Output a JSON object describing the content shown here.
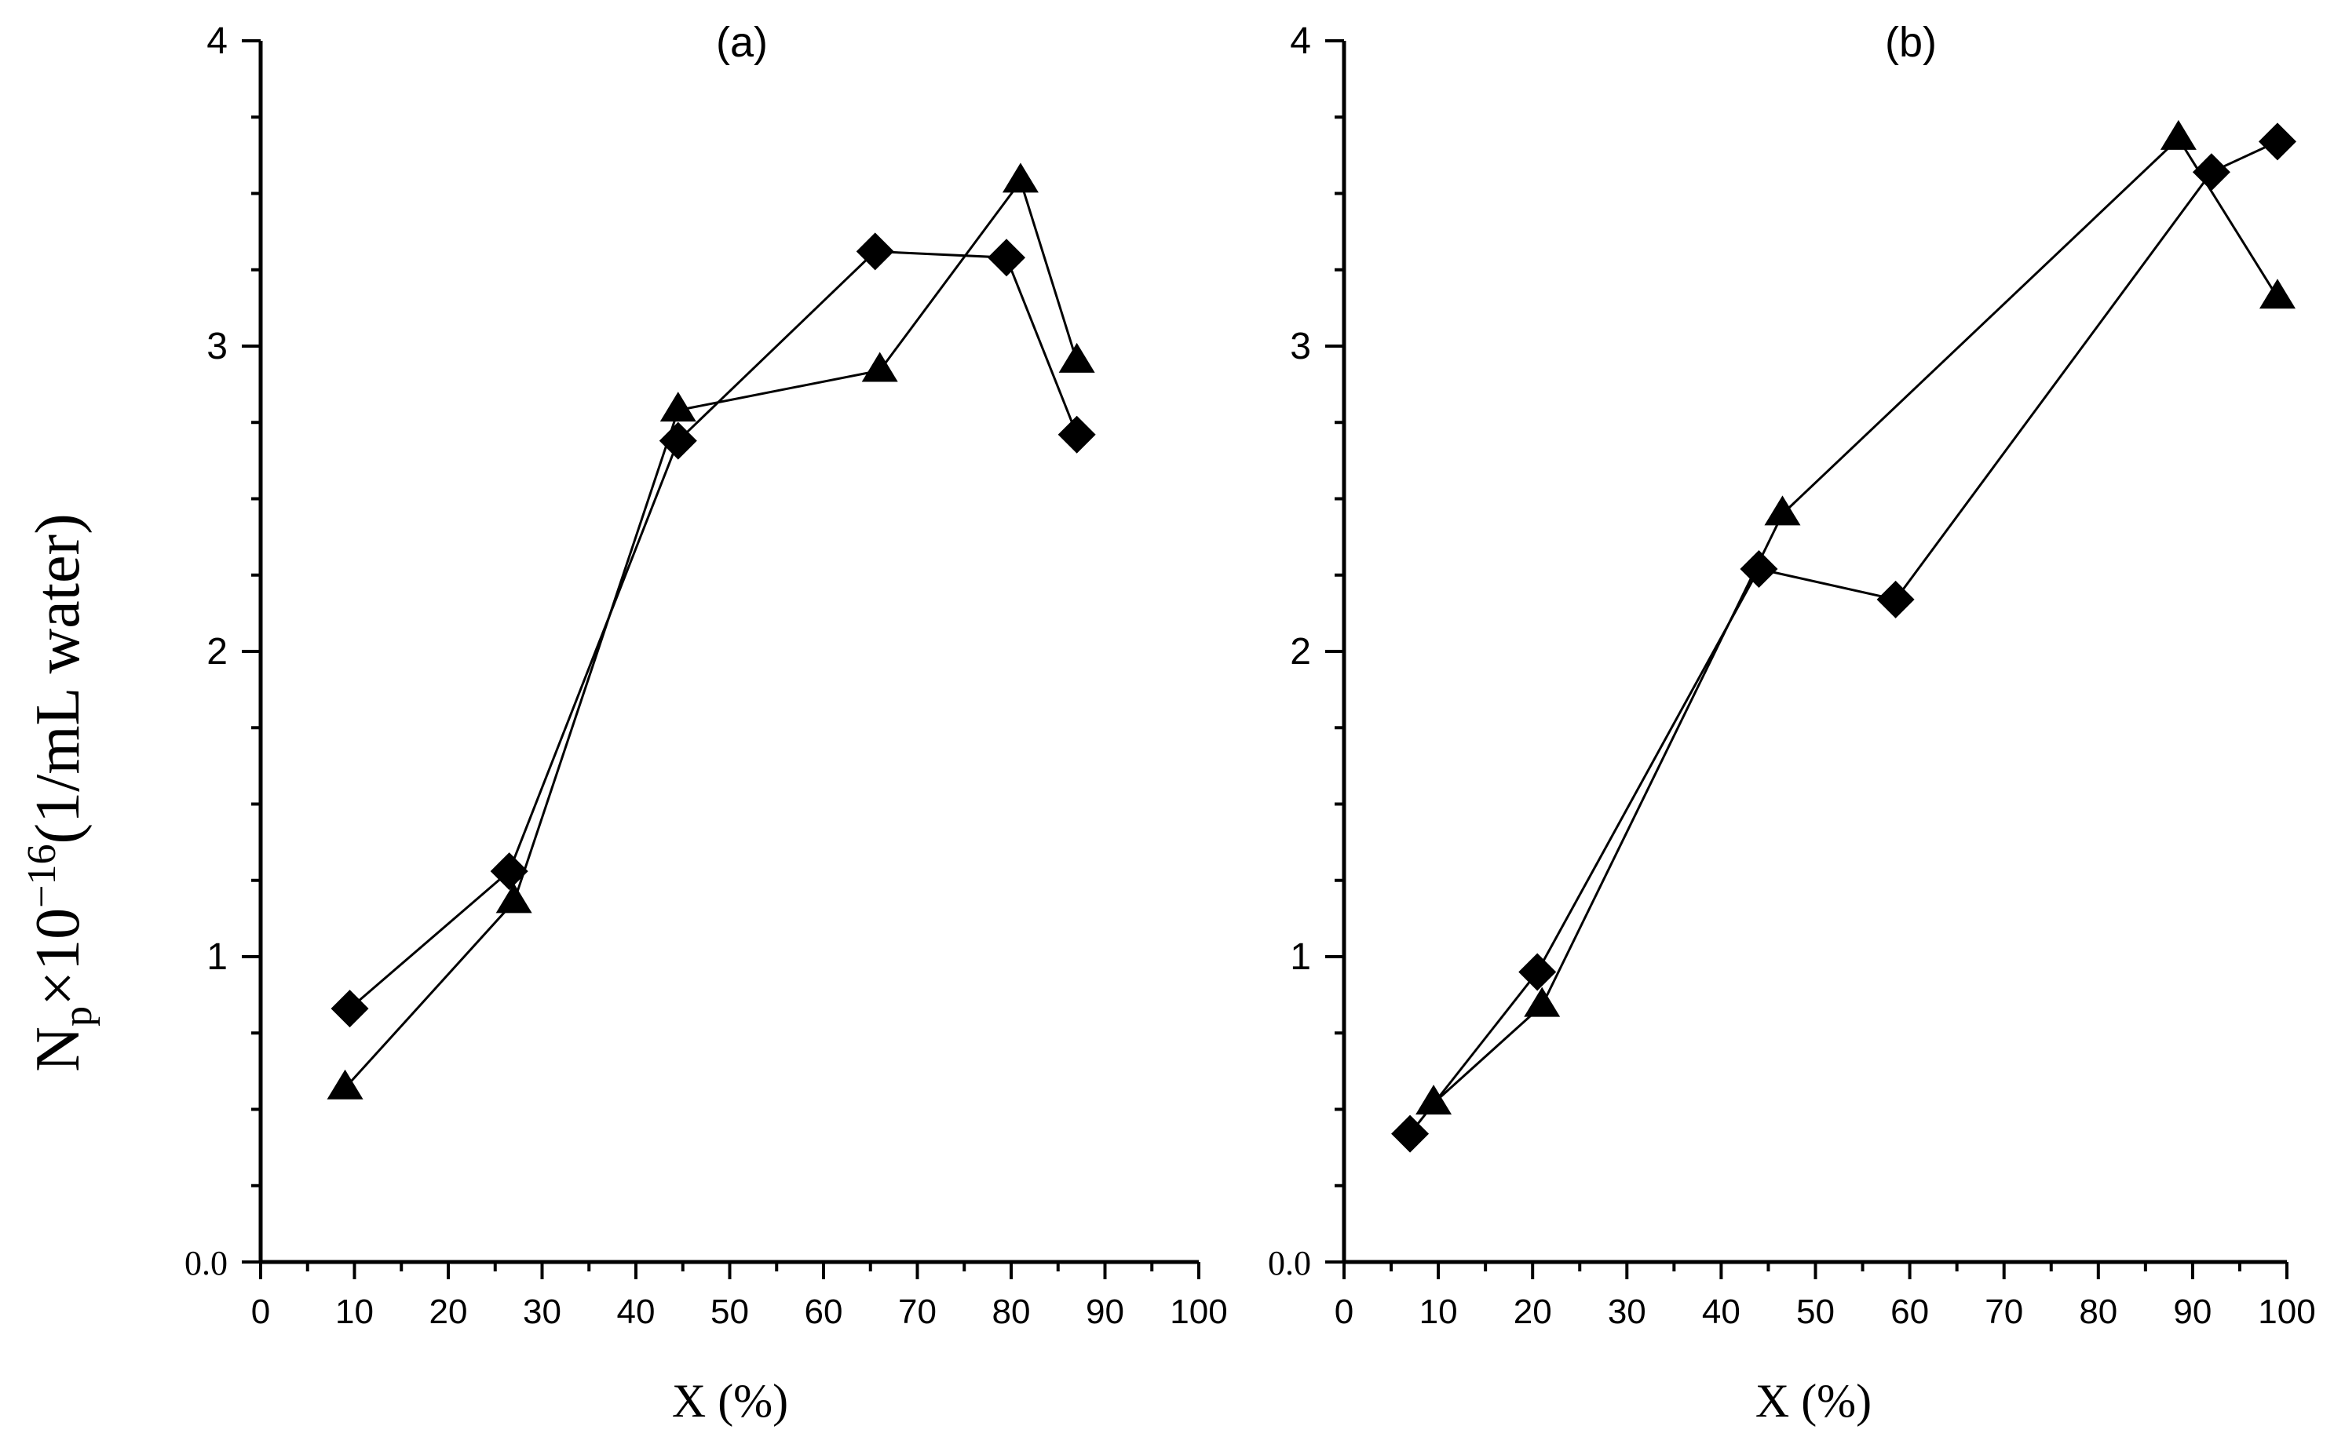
{
  "ylabel": {
    "base": "N",
    "sub": "p",
    "mult": "×10",
    "exp": "−16",
    "unit": "(1/mL water)"
  },
  "chart_data": [
    {
      "type": "line",
      "title": "(a)",
      "xlabel": "X (%)",
      "ylabel": "Np×10−16(1/mL water)",
      "xlim": [
        0,
        100
      ],
      "ylim": [
        0,
        4
      ],
      "x_ticks": [
        "0",
        "10",
        "20",
        "30",
        "40",
        "50",
        "60",
        "70",
        "80",
        "90",
        "100"
      ],
      "y_ticks": [
        "0.0",
        "1",
        "2",
        "3",
        "4"
      ],
      "series": [
        {
          "name": "diamond",
          "marker": "diamond",
          "x": [
            9.5,
            26.5,
            44.5,
            65.5,
            79.5,
            87.0
          ],
          "y": [
            0.83,
            1.28,
            2.69,
            3.31,
            3.29,
            2.71
          ]
        },
        {
          "name": "triangle",
          "marker": "triangle",
          "x": [
            9.0,
            27.0,
            44.5,
            66.0,
            81.0,
            87.0
          ],
          "y": [
            0.57,
            1.18,
            2.79,
            2.92,
            3.54,
            2.95
          ]
        }
      ]
    },
    {
      "type": "line",
      "title": "(b)",
      "xlabel": "X (%)",
      "ylabel": "Np×10−16(1/mL water)",
      "xlim": [
        0,
        100
      ],
      "ylim": [
        0,
        4
      ],
      "x_ticks": [
        "0",
        "10",
        "20",
        "30",
        "40",
        "50",
        "60",
        "70",
        "80",
        "90",
        "100"
      ],
      "y_ticks": [
        "0.0",
        "1",
        "2",
        "3",
        "4"
      ],
      "series": [
        {
          "name": "diamond",
          "marker": "diamond",
          "x": [
            7.0,
            20.5,
            44.0,
            58.5,
            92.0,
            99.0
          ],
          "y": [
            0.42,
            0.95,
            2.27,
            2.17,
            3.57,
            3.67
          ]
        },
        {
          "name": "triangle",
          "marker": "triangle",
          "x": [
            9.5,
            21.0,
            46.5,
            88.5,
            99.0
          ],
          "y": [
            0.52,
            0.84,
            2.45,
            3.68,
            3.16
          ]
        }
      ]
    }
  ]
}
